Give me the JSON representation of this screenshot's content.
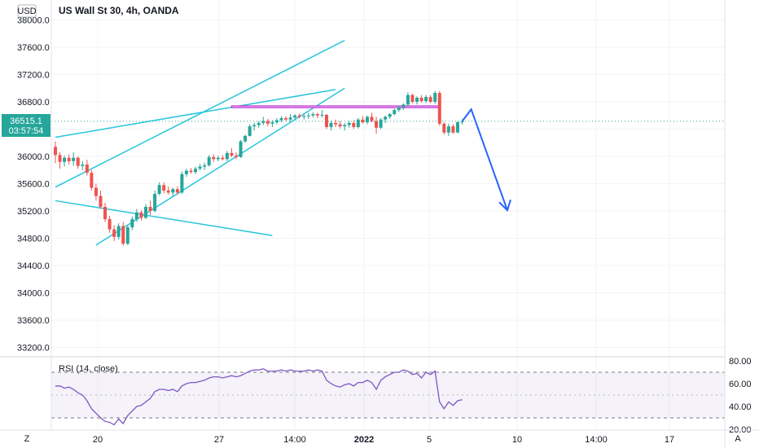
{
  "chart_title": "US Wall St 30, 4h, OANDA",
  "currency": "USD",
  "last_price": "36515.1",
  "countdown": "03:57:54",
  "rsi_label": "RSI (14, close)",
  "corner_left": "Z",
  "corner_right": "A",
  "colors": {
    "up": "#26a69a",
    "down": "#ef5350",
    "line": "#26c6da",
    "rsi": "#7e57c2",
    "arrow": "#2962ff",
    "zone": "#c026d3"
  },
  "chart_data": {
    "type": "candlestick",
    "price_axis": {
      "ticks": [
        38000,
        37600,
        37200,
        36800,
        36400,
        36000,
        35600,
        35200,
        34800,
        34400,
        34000,
        33600,
        33200
      ]
    },
    "time_axis": {
      "tick_labels": [
        "20",
        "27",
        "14:00",
        "2022",
        "5",
        "10",
        "14:00",
        "17"
      ]
    },
    "rsi_axis": {
      "ticks": [
        80,
        60,
        40,
        20
      ],
      "levels": [
        70,
        30
      ]
    },
    "candles": [
      [
        36140,
        36220,
        35900,
        36020
      ],
      [
        36020,
        36060,
        35820,
        35920
      ],
      [
        35920,
        36010,
        35850,
        35980
      ],
      [
        35980,
        36030,
        35880,
        35930
      ],
      [
        35930,
        36060,
        35860,
        35980
      ],
      [
        35980,
        36000,
        35820,
        35860
      ],
      [
        35860,
        35930,
        35800,
        35880
      ],
      [
        35880,
        35950,
        35720,
        35760
      ],
      [
        35760,
        35800,
        35500,
        35540
      ],
      [
        35540,
        35600,
        35350,
        35420
      ],
      [
        35420,
        35500,
        35240,
        35260
      ],
      [
        35260,
        35320,
        35040,
        35080
      ],
      [
        35080,
        35130,
        34880,
        34930
      ],
      [
        34930,
        34990,
        34760,
        34820
      ],
      [
        34820,
        35020,
        34780,
        34980
      ],
      [
        34980,
        35040,
        34690,
        34720
      ],
      [
        34720,
        35000,
        34700,
        34960
      ],
      [
        34960,
        35120,
        34920,
        35080
      ],
      [
        35080,
        35230,
        35040,
        35180
      ],
      [
        35180,
        35210,
        35060,
        35100
      ],
      [
        35100,
        35300,
        35080,
        35260
      ],
      [
        35260,
        35350,
        35140,
        35200
      ],
      [
        35200,
        35500,
        35180,
        35450
      ],
      [
        35450,
        35620,
        35430,
        35580
      ],
      [
        35580,
        35620,
        35460,
        35500
      ],
      [
        35500,
        35560,
        35440,
        35470
      ],
      [
        35470,
        35540,
        35420,
        35520
      ],
      [
        35520,
        35560,
        35440,
        35470
      ],
      [
        35470,
        35780,
        35450,
        35740
      ],
      [
        35740,
        35820,
        35700,
        35790
      ],
      [
        35790,
        35830,
        35750,
        35770
      ],
      [
        35770,
        35850,
        35740,
        35820
      ],
      [
        35820,
        35890,
        35790,
        35850
      ],
      [
        35850,
        35910,
        35800,
        35870
      ],
      [
        35870,
        36020,
        35850,
        35990
      ],
      [
        35990,
        36030,
        35920,
        35960
      ],
      [
        35960,
        36010,
        35930,
        35980
      ],
      [
        35980,
        36020,
        35940,
        35960
      ],
      [
        35960,
        36080,
        35930,
        36050
      ],
      [
        36050,
        36120,
        35990,
        36010
      ],
      [
        36010,
        36060,
        35960,
        35990
      ],
      [
        35990,
        36240,
        35980,
        36220
      ],
      [
        36220,
        36320,
        36200,
        36300
      ],
      [
        36300,
        36470,
        36290,
        36440
      ],
      [
        36440,
        36490,
        36380,
        36460
      ],
      [
        36460,
        36520,
        36420,
        36490
      ],
      [
        36490,
        36580,
        36460,
        36520
      ],
      [
        36520,
        36550,
        36440,
        36480
      ],
      [
        36480,
        36530,
        36430,
        36500
      ],
      [
        36500,
        36560,
        36470,
        36530
      ],
      [
        36530,
        36590,
        36500,
        36560
      ],
      [
        36560,
        36590,
        36520,
        36540
      ],
      [
        36540,
        36620,
        36510,
        36570
      ],
      [
        36570,
        36620,
        36540,
        36600
      ],
      [
        36600,
        36630,
        36560,
        36580
      ],
      [
        36580,
        36620,
        36540,
        36590
      ],
      [
        36590,
        36640,
        36550,
        36600
      ],
      [
        36600,
        36650,
        36570,
        36620
      ],
      [
        36620,
        36640,
        36560,
        36600
      ],
      [
        36600,
        36680,
        36570,
        36610
      ],
      [
        36610,
        36620,
        36400,
        36430
      ],
      [
        36430,
        36520,
        36380,
        36490
      ],
      [
        36490,
        36540,
        36430,
        36470
      ],
      [
        36470,
        36520,
        36410,
        36440
      ],
      [
        36440,
        36490,
        36380,
        36460
      ],
      [
        36460,
        36520,
        36420,
        36490
      ],
      [
        36490,
        36530,
        36400,
        36430
      ],
      [
        36430,
        36560,
        36410,
        36540
      ],
      [
        36540,
        36590,
        36480,
        36500
      ],
      [
        36500,
        36600,
        36470,
        36580
      ],
      [
        36580,
        36640,
        36500,
        36520
      ],
      [
        36520,
        36580,
        36330,
        36420
      ],
      [
        36420,
        36560,
        36400,
        36540
      ],
      [
        36540,
        36600,
        36490,
        36580
      ],
      [
        36580,
        36640,
        36550,
        36620
      ],
      [
        36620,
        36700,
        36600,
        36680
      ],
      [
        36680,
        36740,
        36650,
        36720
      ],
      [
        36720,
        36780,
        36680,
        36760
      ],
      [
        36760,
        36940,
        36740,
        36900
      ],
      [
        36900,
        36920,
        36780,
        36800
      ],
      [
        36800,
        36880,
        36760,
        36860
      ],
      [
        36860,
        36900,
        36790,
        36810
      ],
      [
        36810,
        36900,
        36780,
        36870
      ],
      [
        36870,
        36900,
        36780,
        36800
      ],
      [
        36800,
        36960,
        36770,
        36930
      ],
      [
        36930,
        36960,
        36450,
        36480
      ],
      [
        36480,
        36500,
        36320,
        36350
      ],
      [
        36350,
        36480,
        36300,
        36440
      ],
      [
        36440,
        36470,
        36330,
        36350
      ],
      [
        36350,
        36520,
        36340,
        36500
      ],
      [
        36500,
        36540,
        36470,
        36515
      ]
    ],
    "rsi": [
      58,
      58,
      56,
      57,
      55,
      52,
      50,
      45,
      38,
      34,
      30,
      27,
      26,
      24,
      29,
      25,
      32,
      36,
      40,
      41,
      44,
      47,
      53,
      55,
      55,
      54,
      55,
      53,
      58,
      60,
      61,
      61,
      62,
      63,
      65,
      66,
      66,
      65,
      66,
      67,
      66,
      67,
      69,
      71,
      72,
      72,
      73,
      71,
      71,
      71,
      72,
      71,
      72,
      71,
      71,
      71,
      72,
      71,
      72,
      71,
      63,
      60,
      58,
      57,
      59,
      60,
      58,
      61,
      61,
      63,
      61,
      55,
      63,
      66,
      68,
      70,
      70,
      72,
      71,
      68,
      69,
      65,
      70,
      68,
      71,
      44,
      38,
      44,
      41,
      45,
      46
    ],
    "trendlines": [
      {
        "from": [
          0,
          35550
        ],
        "to": [
          64,
          37700
        ]
      },
      {
        "from": [
          0,
          36280
        ],
        "to": [
          62,
          36980
        ]
      },
      {
        "from": [
          9,
          34700
        ],
        "to": [
          64,
          37000
        ]
      },
      {
        "from": [
          0,
          35350
        ],
        "to": [
          48,
          34840
        ]
      }
    ],
    "zone": {
      "from_bar": 39,
      "to_bar": 85,
      "high": 36740,
      "low": 36715
    },
    "projection": [
      {
        "bar": 90,
        "price": 36515
      },
      {
        "bar": 92,
        "price": 36690
      },
      {
        "bar": 100,
        "price": 35210
      }
    ]
  }
}
